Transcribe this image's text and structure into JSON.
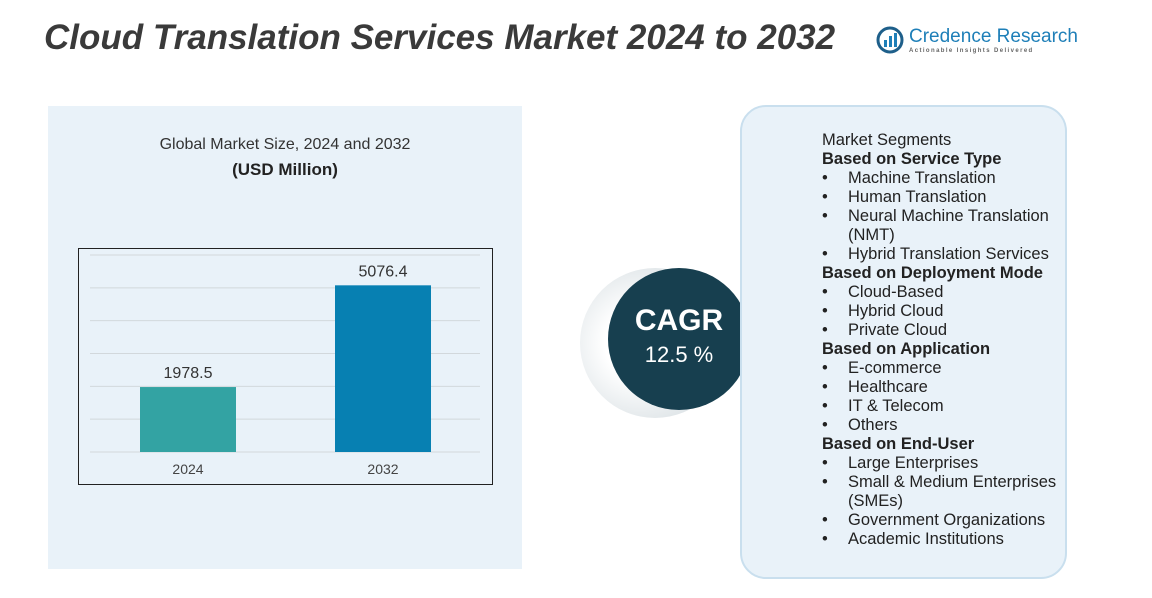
{
  "title": "Cloud Translation Services Market 2024 to 2032",
  "logo": {
    "name": "Credence Research",
    "tagline": "Actionable Insights Delivered"
  },
  "chart_data": {
    "type": "bar",
    "title": "Global Market Size, 2024 and 2032",
    "subtitle": "(USD Million)",
    "categories": [
      "2024",
      "2032"
    ],
    "values": [
      1978.5,
      5076.4
    ],
    "value_labels": [
      "1978.5",
      "5076.4"
    ],
    "colors": [
      "#33a3a3",
      "#0780b2"
    ],
    "ylim": [
      0,
      6000
    ],
    "grid": true
  },
  "cagr": {
    "label": "CAGR",
    "value": "12.5 %"
  },
  "segments": {
    "heading": "Market Segments",
    "groups": [
      {
        "title": "Based on Service Type",
        "items": [
          "Machine Translation",
          "Human Translation",
          "Neural Machine Translation (NMT)",
          "Hybrid Translation Services"
        ]
      },
      {
        "title": "Based on Deployment Mode",
        "items": [
          "Cloud-Based",
          "Hybrid Cloud",
          "Private Cloud"
        ]
      },
      {
        "title": "Based on Application",
        "items": [
          "E-commerce",
          "Healthcare",
          "IT & Telecom",
          "Others"
        ]
      },
      {
        "title": "Based on End-User",
        "items": [
          "Large Enterprises",
          "Small & Medium Enterprises (SMEs)",
          "Government Organizations",
          "Academic Institutions"
        ]
      }
    ]
  }
}
